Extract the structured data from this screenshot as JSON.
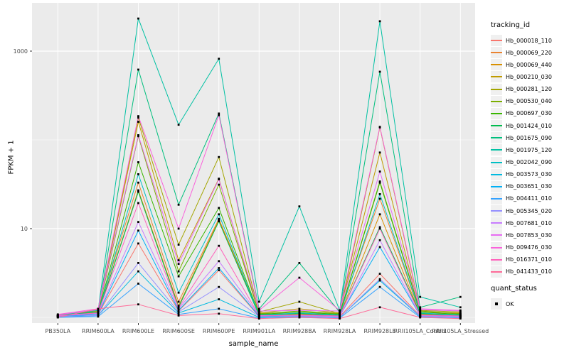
{
  "chart_data": {
    "type": "line",
    "title": "",
    "xlabel": "sample_name",
    "ylabel": "FPKM + 1",
    "y_scale": "log10",
    "ylim_log": [
      0.88,
      3.55
    ],
    "grid": "on",
    "legend_position": "right",
    "legend_title": "tracking_id",
    "quant_legend": {
      "title": "quant_status",
      "items": [
        {
          "label": "OK",
          "marker": "black-point"
        }
      ]
    },
    "y_ticks": [
      {
        "label": "10",
        "value": 10
      },
      {
        "label": "1000",
        "value": 1000
      }
    ],
    "y_minor_values": [
      1,
      100
    ],
    "categories": [
      "PB350LA",
      "RRIM600LA",
      "RRIM600LE",
      "RRIM600SE",
      "RRIM600PE",
      "RRIM901LA",
      "RRIM928BA",
      "RRIM928LA",
      "RRIM928LE",
      "RRII105LA_Control",
      "RRII105LA_Stressed"
    ],
    "series": [
      {
        "name": "Hb_000018_110",
        "color": "#F8766D",
        "values": [
          1.03,
          1.08,
          6.8,
          1.18,
          3.4,
          1.02,
          1.04,
          1.02,
          3.1,
          1.04,
          1.02
        ]
      },
      {
        "name": "Hb_000069_220",
        "color": "#EA8331",
        "values": [
          1.04,
          1.14,
          33,
          1.5,
          12.9,
          1.1,
          1.1,
          1.1,
          21.7,
          1.1,
          1.1
        ]
      },
      {
        "name": "Hb_000069_440",
        "color": "#D89000",
        "values": [
          1.03,
          1.1,
          27,
          1.35,
          12.5,
          1.08,
          1.08,
          1.05,
          14.5,
          1.08,
          1.05
        ]
      },
      {
        "name": "Hb_000210_030",
        "color": "#C09B00",
        "values": [
          1.04,
          1.18,
          160,
          4.4,
          36.5,
          1.12,
          1.25,
          1.12,
          72,
          1.15,
          1.12
        ]
      },
      {
        "name": "Hb_000281_120",
        "color": "#A3A500",
        "values": [
          1.06,
          1.2,
          178,
          6.6,
          64,
          1.15,
          1.5,
          1.1,
          138,
          1.2,
          1.15
        ]
      },
      {
        "name": "Hb_000530_040",
        "color": "#7CAE00",
        "values": [
          1.05,
          1.15,
          110,
          3.3,
          31.3,
          1.1,
          1.18,
          1.1,
          34,
          1.18,
          1.1
        ]
      },
      {
        "name": "Hb_000697_030",
        "color": "#39B600",
        "values": [
          1.03,
          1.12,
          56,
          2.9,
          17.1,
          1.08,
          1.15,
          1.08,
          33,
          1.15,
          1.08
        ]
      },
      {
        "name": "Hb_001424_010",
        "color": "#00BB4E",
        "values": [
          1.02,
          1.1,
          26,
          1.3,
          12.1,
          1.05,
          1.1,
          1.05,
          10.4,
          1.1,
          1.05
        ]
      },
      {
        "name": "Hb_001675_090",
        "color": "#00BF7D",
        "values": [
          1.05,
          1.15,
          620,
          18.6,
          198,
          1.25,
          4.1,
          1.15,
          586,
          1.3,
          1.7
        ]
      },
      {
        "name": "Hb_001975_120",
        "color": "#00C1A3",
        "values": [
          1.05,
          1.2,
          2330,
          148,
          820,
          1.5,
          17.8,
          1.2,
          2170,
          1.7,
          1.3
        ]
      },
      {
        "name": "Hb_002042_090",
        "color": "#00BFC4",
        "values": [
          1.02,
          1.1,
          41,
          1.9,
          14.5,
          1.06,
          1.12,
          1.06,
          24.5,
          1.12,
          1.06
        ]
      },
      {
        "name": "Hb_003573_030",
        "color": "#00BAE0",
        "values": [
          1.0,
          1.05,
          3.3,
          1.12,
          1.6,
          1.0,
          1.02,
          1.0,
          2.6,
          1.02,
          1.0
        ]
      },
      {
        "name": "Hb_003651_030",
        "color": "#00B0F6",
        "values": [
          1.02,
          1.08,
          9.5,
          1.2,
          3.6,
          1.03,
          1.05,
          1.03,
          6.2,
          1.05,
          1.03
        ]
      },
      {
        "name": "Hb_004411_010",
        "color": "#35A2FF",
        "values": [
          1.0,
          1.02,
          2.4,
          1.08,
          1.25,
          0.98,
          1.0,
          0.98,
          2.2,
          1.0,
          0.98
        ]
      },
      {
        "name": "Hb_005345_020",
        "color": "#9590FF",
        "values": [
          1.02,
          1.05,
          4.1,
          1.15,
          2.2,
          1.02,
          1.03,
          1.0,
          2.7,
          1.03,
          1.0
        ]
      },
      {
        "name": "Hb_007681_010",
        "color": "#C77CFF",
        "values": [
          1.04,
          1.1,
          11.9,
          1.25,
          4.3,
          1.05,
          1.05,
          1.02,
          7.4,
          1.05,
          1.02
        ]
      },
      {
        "name": "Hb_007853_030",
        "color": "#E76BF3",
        "values": [
          1.07,
          1.22,
          113,
          4.0,
          35.9,
          1.18,
          1.2,
          1.18,
          44,
          1.22,
          1.18
        ]
      },
      {
        "name": "Hb_009476_030",
        "color": "#FA62DB",
        "values": [
          1.08,
          1.25,
          185,
          10,
          190,
          1.2,
          2.8,
          1.2,
          140,
          1.25,
          1.2
        ]
      },
      {
        "name": "Hb_016371_010",
        "color": "#FF62BC",
        "values": [
          1.05,
          1.12,
          19.4,
          1.28,
          6.4,
          1.04,
          1.06,
          1.04,
          10,
          1.06,
          1.04
        ]
      },
      {
        "name": "Hb_041433_010",
        "color": "#FF6A98",
        "values": [
          1.0,
          1.25,
          1.4,
          1.05,
          1.1,
          0.97,
          1.0,
          0.97,
          1.3,
          1.0,
          0.97
        ]
      }
    ],
    "panel_bg": "#EBEBEB",
    "grid_color": "#FFFFFF",
    "tick_label_color": "#4D4D4D",
    "point_color": "#000000"
  }
}
